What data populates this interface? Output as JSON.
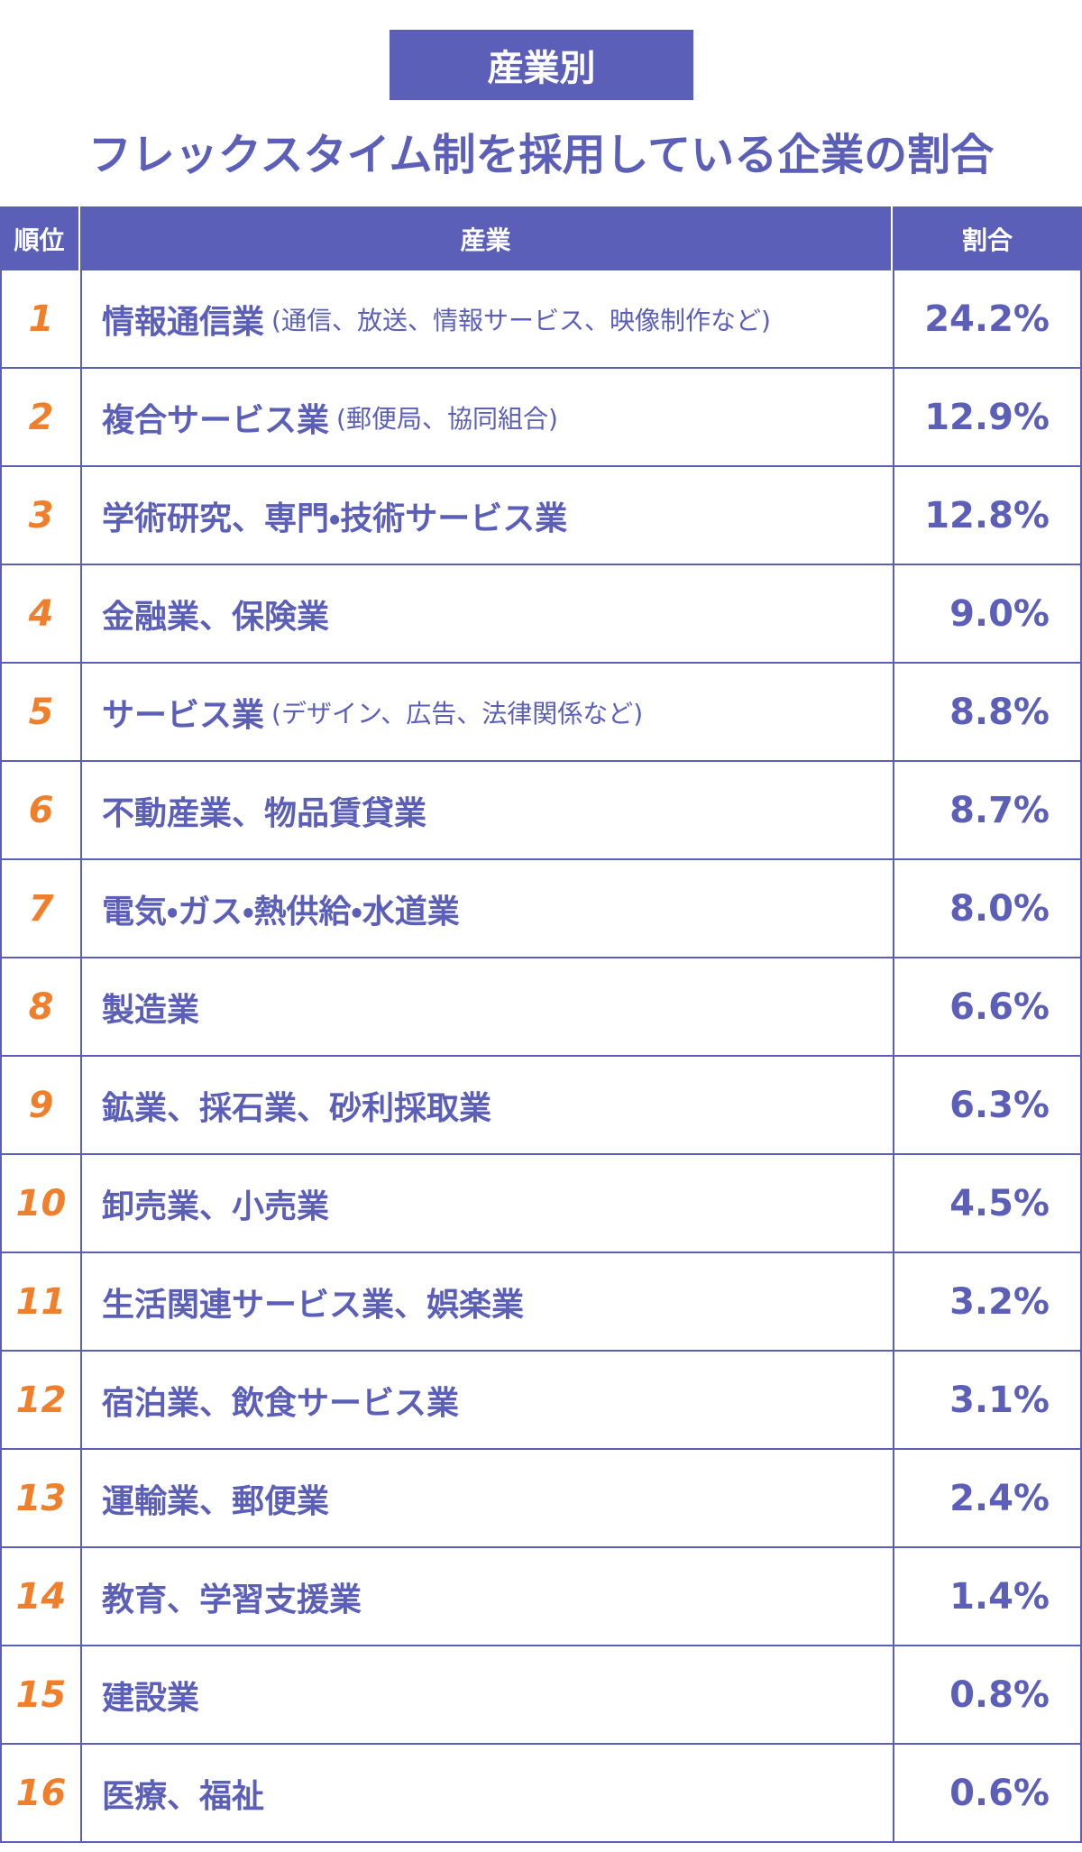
{
  "header": {
    "badge": "産業別",
    "title": "フレックスタイム制を採用している企業の割合"
  },
  "table": {
    "columns": [
      "順位",
      "産業",
      "割合"
    ],
    "rows": [
      {
        "rank": "1",
        "industry": "情報通信業",
        "note": "(通信、放送、情報サービス、映像制作など)",
        "share": "24.2%"
      },
      {
        "rank": "2",
        "industry": "複合サービス業",
        "note": "(郵便局、協同組合)",
        "share": "12.9%"
      },
      {
        "rank": "3",
        "industry": "学術研究、専門・技術サービス業",
        "share": "12.8%"
      },
      {
        "rank": "4",
        "industry": "金融業、保険業",
        "share": "9.0%"
      },
      {
        "rank": "5",
        "industry": "サービス業",
        "note": "(デザイン、広告、法律関係など)",
        "share": "8.8%"
      },
      {
        "rank": "6",
        "industry": "不動産業、物品賃貸業",
        "share": "8.7%"
      },
      {
        "rank": "7",
        "industry": "電気・ガス・熱供給・水道業",
        "share": "8.0%"
      },
      {
        "rank": "8",
        "industry": "製造業",
        "share": "6.6%"
      },
      {
        "rank": "9",
        "industry": "鉱業、採石業、砂利採取業",
        "share": "6.3%"
      },
      {
        "rank": "10",
        "industry": "卸売業、小売業",
        "share": "4.5%"
      },
      {
        "rank": "11",
        "industry": "生活関連サービス業、娯楽業",
        "share": "3.2%"
      },
      {
        "rank": "12",
        "industry": "宿泊業、飲食サービス業",
        "share": "3.1%"
      },
      {
        "rank": "13",
        "industry": "運輸業、郵便業",
        "share": "2.4%"
      },
      {
        "rank": "14",
        "industry": "教育、学習支援業",
        "share": "1.4%"
      },
      {
        "rank": "15",
        "industry": "建設業",
        "share": "0.8%"
      },
      {
        "rank": "16",
        "industry": "医療、福祉",
        "share": "0.6%"
      }
    ]
  }
}
